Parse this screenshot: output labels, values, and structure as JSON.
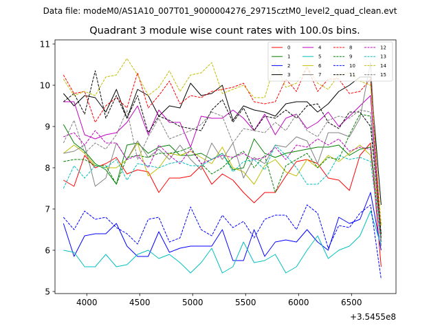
{
  "suptitle": "Data file: modeM0/AS1A10_007T01_9000004276_29715cztM0_level2_quad_clean.evt",
  "chart_data": {
    "type": "line",
    "title": "Quadrant 3 module wise count rates with 100.0s bins.",
    "x_offset_label": "+3.5455e8",
    "xlim": [
      3700,
      6920
    ],
    "ylim": [
      4.95,
      11.1
    ],
    "xticks": [
      4000,
      4500,
      5000,
      5500,
      6000,
      6500
    ],
    "yticks": [
      5,
      6,
      7,
      8,
      9,
      10,
      11
    ],
    "x": [
      3780,
      3880,
      3980,
      4080,
      4180,
      4280,
      4380,
      4480,
      4580,
      4680,
      4780,
      4880,
      4980,
      5080,
      5180,
      5280,
      5380,
      5480,
      5580,
      5680,
      5780,
      5880,
      5980,
      6080,
      6180,
      6280,
      6380,
      6480,
      6580,
      6680,
      6780
    ],
    "series": [
      {
        "name": "0",
        "color": "#ff0000",
        "dash": "solid",
        "values": [
          7.7,
          7.55,
          8.3,
          8.0,
          8.1,
          8.25,
          7.85,
          7.95,
          7.9,
          7.4,
          7.75,
          7.75,
          7.8,
          8.05,
          7.6,
          7.85,
          7.7,
          7.4,
          7.15,
          7.4,
          7.4,
          7.8,
          8.15,
          8.2,
          8.1,
          7.75,
          7.7,
          7.45,
          8.3,
          8.6,
          5.6
        ]
      },
      {
        "name": "1",
        "color": "#008000",
        "dash": "solid",
        "values": [
          9.05,
          8.6,
          8.4,
          8.1,
          7.95,
          7.6,
          8.55,
          8.6,
          8.35,
          8.5,
          8.55,
          8.3,
          8.3,
          8.35,
          8.2,
          8.35,
          7.95,
          8.0,
          8.7,
          8.35,
          8.25,
          8.35,
          8.4,
          8.45,
          8.5,
          8.5,
          8.55,
          8.3,
          8.45,
          8.5,
          6.4
        ]
      },
      {
        "name": "2",
        "color": "#0000ff",
        "dash": "solid",
        "values": [
          6.65,
          5.85,
          6.35,
          6.4,
          6.4,
          6.65,
          6.1,
          5.85,
          5.85,
          6.45,
          5.95,
          6.05,
          6.1,
          6.1,
          6.1,
          6.5,
          5.75,
          5.75,
          6.5,
          5.85,
          6.2,
          6.25,
          6.2,
          6.5,
          6.2,
          6.0,
          6.8,
          6.65,
          6.75,
          7.4,
          6.0
        ]
      },
      {
        "name": "3",
        "color": "#000000",
        "dash": "solid",
        "values": [
          9.8,
          9.5,
          9.75,
          9.7,
          9.35,
          9.9,
          9.2,
          9.9,
          9.75,
          9.25,
          9.5,
          9.45,
          10.05,
          9.75,
          9.8,
          10.0,
          9.15,
          9.5,
          9.4,
          9.35,
          9.25,
          9.55,
          9.6,
          9.6,
          9.35,
          9.55,
          9.85,
          10.0,
          10.2,
          10.2,
          7.1
        ]
      },
      {
        "name": "4",
        "color": "#bf00bf",
        "dash": "solid",
        "values": [
          9.6,
          9.6,
          8.8,
          8.7,
          8.8,
          8.85,
          9.1,
          9.5,
          8.8,
          9.4,
          9.1,
          9.1,
          8.5,
          9.25,
          9.2,
          9.2,
          9.4,
          9.2,
          8.9,
          9.3,
          8.8,
          9.2,
          9.3,
          8.95,
          9.1,
          9.35,
          9.0,
          9.25,
          9.5,
          9.75,
          6.2
        ]
      },
      {
        "name": "5",
        "color": "#00bfbf",
        "dash": "solid",
        "values": [
          6.0,
          5.95,
          5.6,
          5.6,
          5.9,
          5.6,
          5.65,
          5.9,
          6.0,
          5.8,
          5.9,
          5.7,
          5.45,
          5.7,
          6.05,
          5.45,
          5.6,
          6.2,
          5.7,
          5.75,
          5.9,
          5.45,
          5.6,
          6.0,
          6.35,
          5.8,
          6.0,
          6.1,
          6.35,
          6.95,
          6.1
        ]
      },
      {
        "name": "6",
        "color": "#bfbf00",
        "dash": "solid",
        "values": [
          8.35,
          8.55,
          8.35,
          8.05,
          8.0,
          8.0,
          8.2,
          8.6,
          7.8,
          8.0,
          8.35,
          8.3,
          8.4,
          8.25,
          8.1,
          8.5,
          8.0,
          7.9,
          7.6,
          8.05,
          8.2,
          7.9,
          7.8,
          8.2,
          8.0,
          8.3,
          8.15,
          8.35,
          8.55,
          8.3,
          6.6
        ]
      },
      {
        "name": "7",
        "color": "#808080",
        "dash": "solid",
        "values": [
          8.35,
          8.4,
          8.55,
          7.55,
          7.75,
          8.6,
          8.2,
          8.65,
          8.25,
          8.45,
          8.2,
          8.55,
          8.2,
          7.95,
          8.6,
          8.2,
          8.6,
          7.75,
          8.25,
          8.1,
          8.55,
          8.5,
          8.75,
          8.65,
          8.1,
          8.85,
          8.85,
          8.75,
          9.2,
          10.55,
          6.2
        ]
      },
      {
        "name": "8",
        "color": "#ff0000",
        "dash": "dashed",
        "values": [
          10.25,
          9.8,
          9.85,
          9.1,
          9.5,
          9.7,
          9.45,
          10.3,
          9.45,
          9.75,
          10.1,
          9.55,
          9.75,
          9.7,
          9.85,
          9.9,
          9.95,
          10.05,
          9.6,
          9.55,
          9.6,
          10.15,
          9.85,
          10.45,
          9.85,
          10.15,
          10.15,
          9.8,
          9.85,
          10.15,
          6.3
        ]
      },
      {
        "name": "9",
        "color": "#008000",
        "dash": "dashed",
        "values": [
          8.15,
          8.2,
          8.2,
          8.05,
          8.05,
          7.6,
          8.25,
          8.3,
          8.25,
          8.35,
          8.35,
          8.4,
          8.5,
          8.1,
          7.85,
          8.0,
          8.25,
          8.4,
          8.0,
          8.3,
          7.4,
          8.05,
          8.2,
          8.35,
          8.0,
          8.25,
          8.2,
          8.8,
          9.3,
          9.25,
          6.3
        ]
      },
      {
        "name": "10",
        "color": "#0000ff",
        "dash": "dashed",
        "values": [
          6.8,
          6.5,
          6.95,
          6.75,
          6.8,
          6.55,
          6.4,
          6.15,
          6.75,
          6.8,
          6.2,
          6.3,
          7.05,
          6.5,
          6.35,
          6.85,
          6.55,
          6.7,
          6.3,
          6.75,
          6.85,
          6.85,
          6.5,
          7.1,
          6.9,
          6.05,
          6.6,
          6.55,
          6.9,
          7.1,
          5.3
        ]
      },
      {
        "name": "11",
        "color": "#000000",
        "dash": "dashed",
        "values": [
          9.6,
          9.8,
          9.3,
          10.35,
          9.2,
          9.75,
          9.2,
          9.75,
          8.85,
          9.25,
          9.15,
          9.0,
          8.95,
          8.9,
          9.4,
          9.65,
          9.1,
          9.45,
          8.9,
          9.25,
          9.2,
          9.4,
          9.2,
          9.5,
          9.55,
          9.1,
          8.95,
          9.35,
          9.35,
          9.0,
          6.4
        ]
      },
      {
        "name": "12",
        "color": "#bf00bf",
        "dash": "dashed",
        "values": [
          8.75,
          8.85,
          8.55,
          8.9,
          8.6,
          8.6,
          8.2,
          8.3,
          8.0,
          8.55,
          8.3,
          8.1,
          8.45,
          8.1,
          8.2,
          8.3,
          8.25,
          8.35,
          8.2,
          8.25,
          8.5,
          8.2,
          8.55,
          8.5,
          8.7,
          8.55,
          8.7,
          8.4,
          8.5,
          8.45,
          6.1
        ]
      },
      {
        "name": "13",
        "color": "#00bfbf",
        "dash": "dashed",
        "values": [
          7.5,
          8.05,
          7.75,
          8.05,
          8.0,
          8.2,
          7.7,
          8.1,
          8.05,
          8.0,
          8.1,
          8.15,
          8.05,
          8.05,
          8.2,
          8.35,
          7.9,
          8.15,
          8.2,
          7.95,
          8.55,
          8.3,
          8.0,
          7.6,
          7.6,
          7.85,
          8.3,
          8.2,
          8.25,
          8.15,
          6.2
        ]
      },
      {
        "name": "14",
        "color": "#bfbf00",
        "dash": "dashed",
        "values": [
          10.15,
          9.75,
          9.85,
          9.75,
          10.2,
          10.25,
          10.65,
          10.25,
          9.75,
          9.95,
          10.35,
          9.85,
          10.25,
          10.3,
          10.55,
          9.8,
          9.9,
          10.0,
          9.7,
          9.7,
          10.55,
          9.95,
          10.05,
          10.45,
          10.05,
          9.9,
          10.25,
          10.3,
          10.1,
          10.0,
          6.65
        ]
      },
      {
        "name": "15",
        "color": "#808080",
        "dash": "dashed",
        "values": [
          8.6,
          9.15,
          8.35,
          8.6,
          8.45,
          8.8,
          9.4,
          8.2,
          8.75,
          9.2,
          8.7,
          8.8,
          8.9,
          9.05,
          9.35,
          9.25,
          8.6,
          8.95,
          8.9,
          8.85,
          9.1,
          8.9,
          9.3,
          8.9,
          8.75,
          9.15,
          9.25,
          9.2,
          9.4,
          9.35,
          6.1
        ]
      }
    ]
  }
}
